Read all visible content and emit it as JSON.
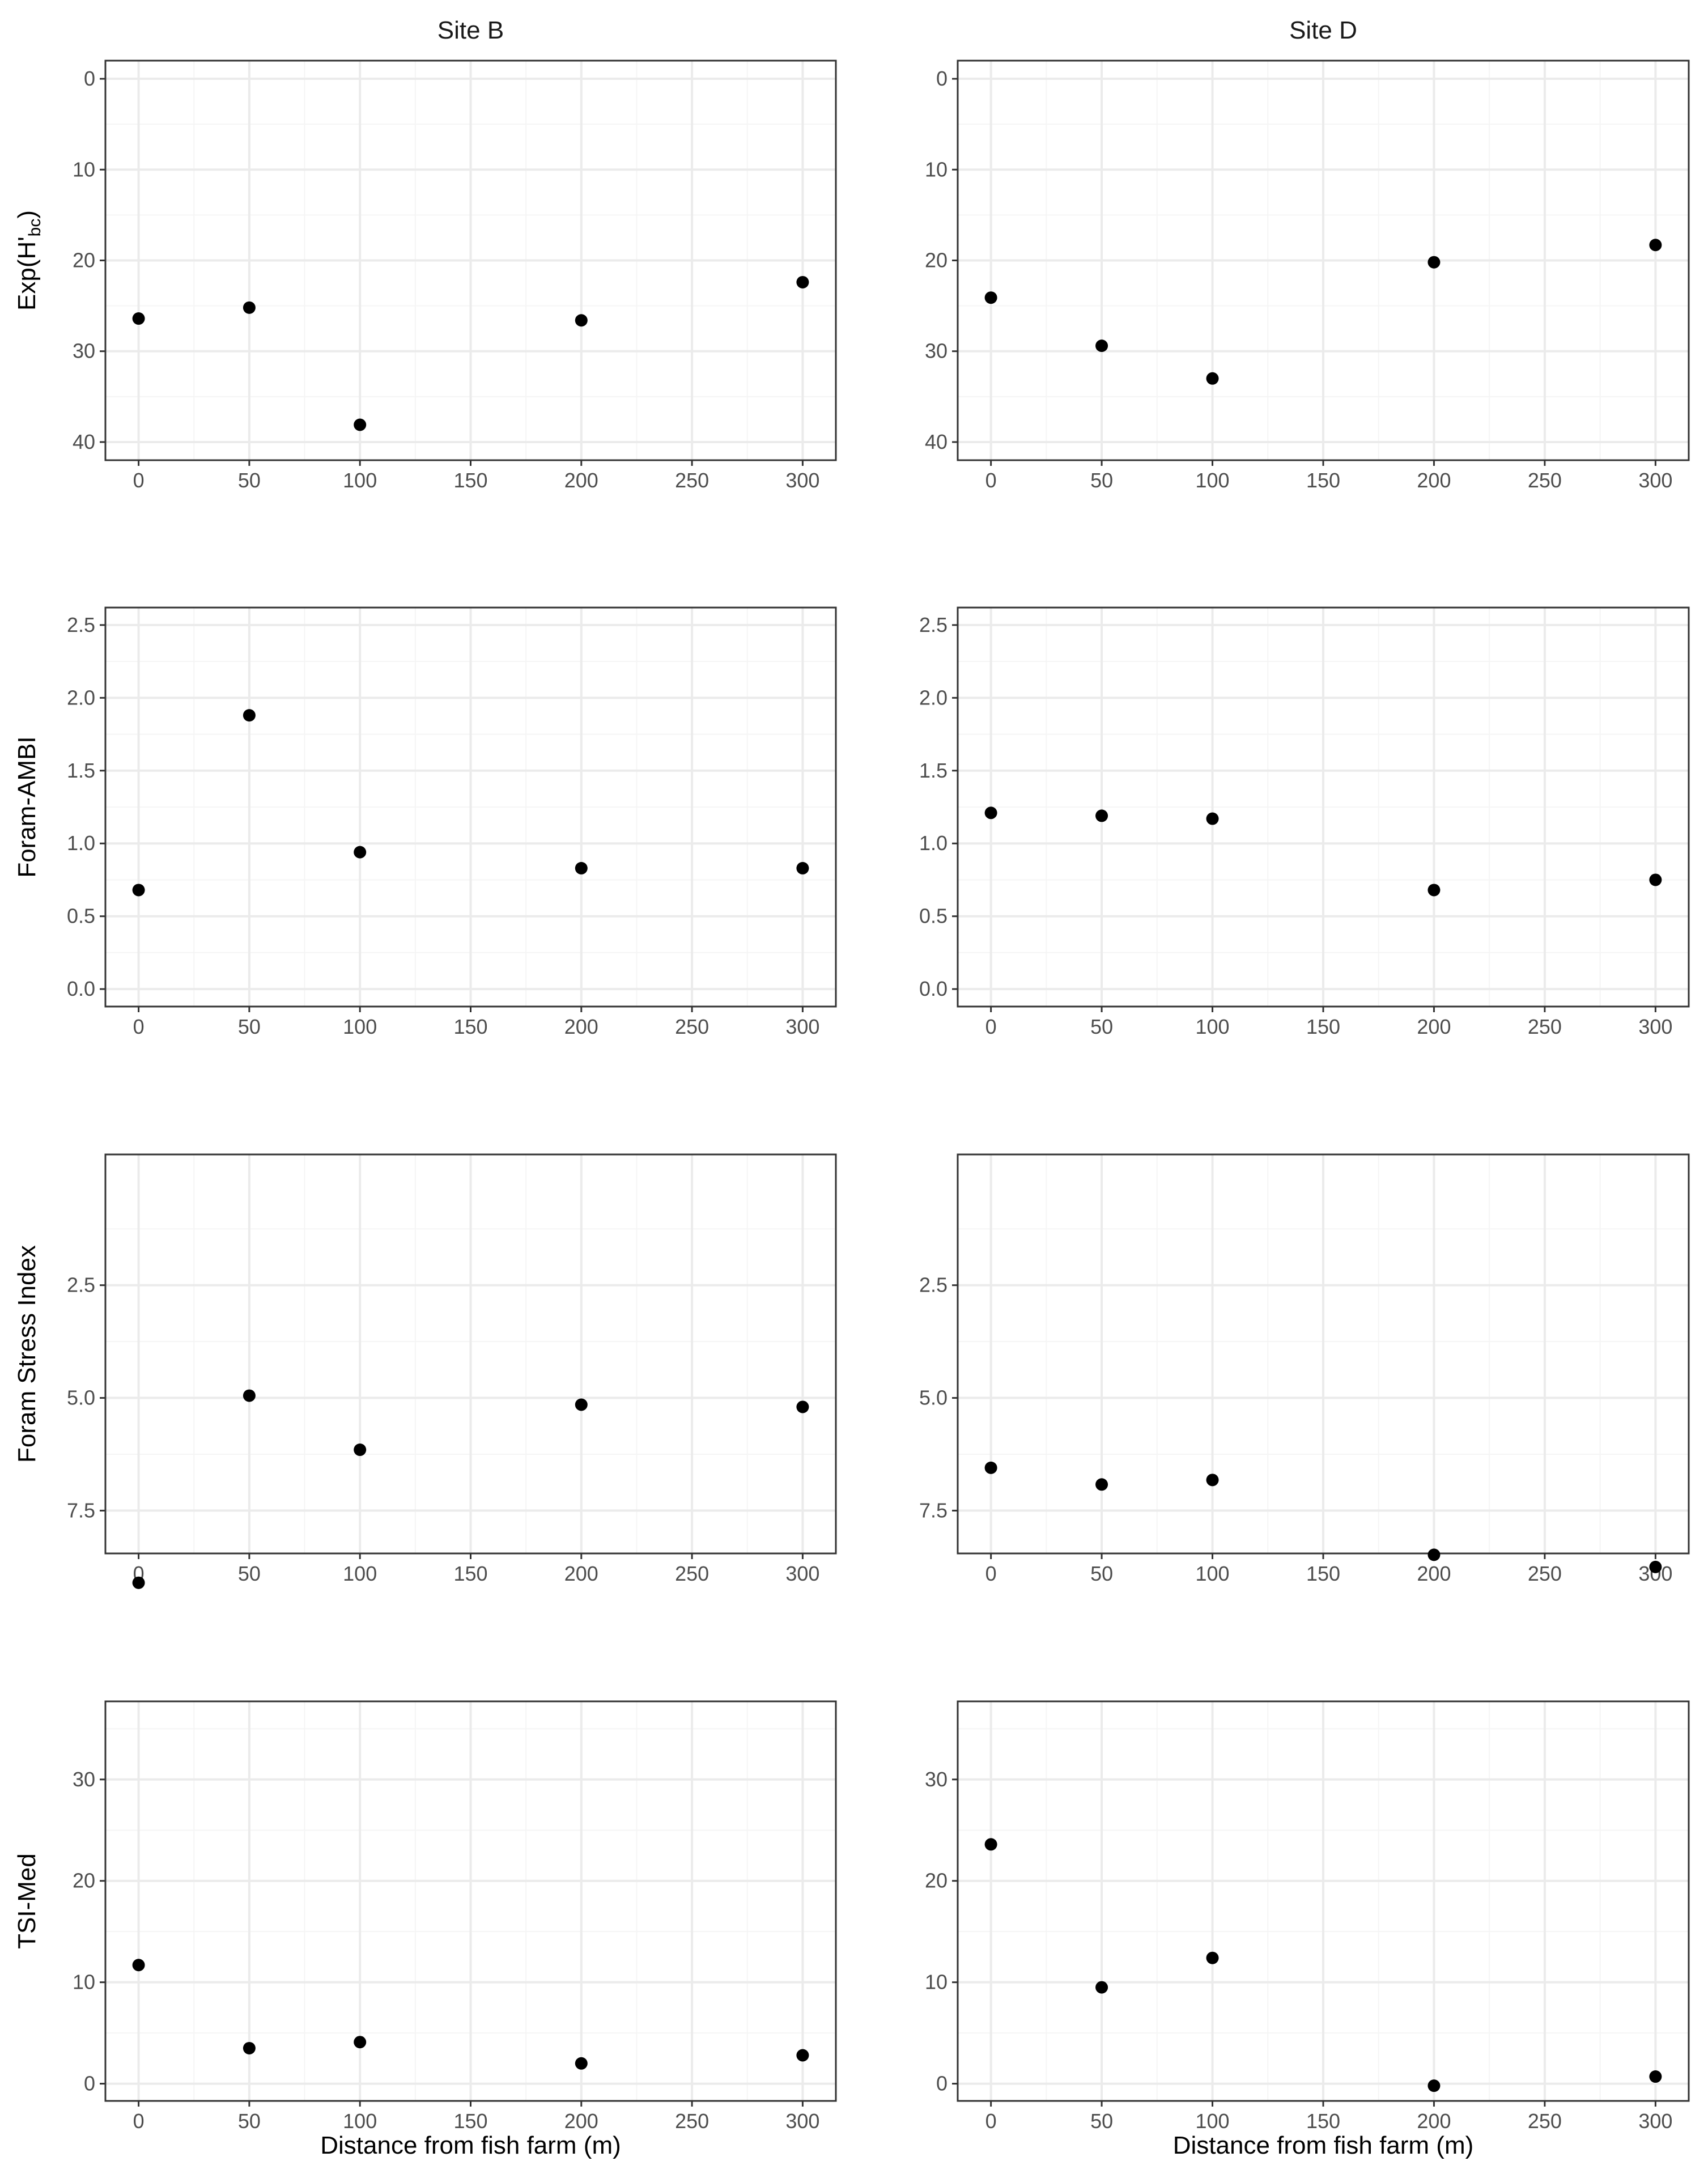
{
  "chart_data": {
    "type": "scatter",
    "columns": [
      "Site B",
      "Site D"
    ],
    "xlabel": "Distance from fish farm (m)",
    "x_ticks": [
      0,
      50,
      100,
      150,
      200,
      250,
      300
    ],
    "x": [
      0,
      50,
      100,
      200,
      300
    ],
    "xlim": [
      -15,
      315
    ],
    "rows": [
      {
        "ylabel": "Exp(H'bc)",
        "ylabel_main": "Exp(H'",
        "ylabel_sub": "bc",
        "ylabel_end": ")",
        "reversed": true,
        "ylim": [
          -2,
          42
        ],
        "y_ticks": [
          0,
          10,
          20,
          30,
          40
        ],
        "y_tick_labels": [
          "0",
          "10",
          "20",
          "30",
          "40"
        ],
        "series": [
          {
            "name": "Site B",
            "values": [
              26.4,
              25.2,
              38.1,
              26.6,
              22.4
            ]
          },
          {
            "name": "Site D",
            "values": [
              24.1,
              29.4,
              33.0,
              20.2,
              18.3
            ]
          }
        ]
      },
      {
        "ylabel": "Foram-AMBI",
        "reversed": false,
        "ylim": [
          -0.12,
          2.62
        ],
        "y_ticks": [
          0,
          0.5,
          1.0,
          1.5,
          2.0,
          2.5
        ],
        "y_tick_labels": [
          "0.0",
          "0.5",
          "1.0",
          "1.5",
          "2.0",
          "2.5"
        ],
        "series": [
          {
            "name": "Site B",
            "values": [
              0.68,
              1.88,
              0.94,
              0.83,
              0.83
            ]
          },
          {
            "name": "Site D",
            "values": [
              1.21,
              1.19,
              1.17,
              0.68,
              0.75
            ]
          }
        ]
      },
      {
        "ylabel": "Foram Stress Index",
        "reversed": true,
        "ylim": [
          -0.4,
          8.45
        ],
        "y_ticks": [
          2.5,
          5.0,
          7.5
        ],
        "y_tick_labels": [
          "2.5",
          "5.0",
          "7.5"
        ],
        "series": [
          {
            "name": "Site B",
            "values": [
              9.1,
              4.95,
              6.15,
              5.15,
              5.2
            ]
          },
          {
            "name": "Site D",
            "values": [
              6.55,
              6.92,
              6.82,
              8.48,
              8.75
            ]
          }
        ]
      },
      {
        "ylabel": "TSI-Med",
        "reversed": false,
        "ylim": [
          -1.7,
          37.7
        ],
        "y_ticks": [
          0,
          10,
          20,
          30
        ],
        "y_tick_labels": [
          "0",
          "10",
          "20",
          "30"
        ],
        "series": [
          {
            "name": "Site B",
            "values": [
              11.7,
              3.5,
              4.1,
              2.0,
              2.8
            ]
          },
          {
            "name": "Site D",
            "values": [
              23.6,
              9.5,
              12.4,
              -0.2,
              0.7
            ]
          }
        ]
      }
    ],
    "grid": true
  },
  "colors": {
    "panel_border": "#333333",
    "grid_major": "#ebebeb",
    "grid_minor": "#f5f5f5",
    "tick_label": "#4d4d4d",
    "point": "#000000"
  }
}
